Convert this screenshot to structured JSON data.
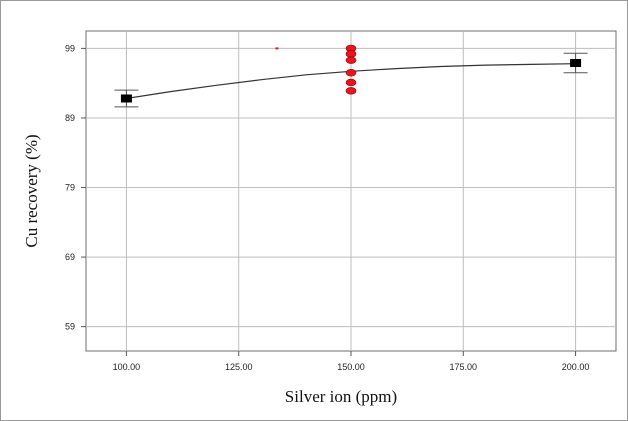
{
  "chart_data": {
    "type": "line",
    "title": "",
    "xlabel": "Silver ion (ppm)",
    "ylabel": "Cu recovery (%)",
    "xlim": [
      91,
      209
    ],
    "ylim": [
      55.5,
      101.5
    ],
    "x_ticks": [
      100,
      125,
      150,
      175,
      200
    ],
    "x_tick_labels": [
      "100.00",
      "125.00",
      "150.00",
      "175.00",
      "200.00"
    ],
    "y_ticks": [
      59,
      69,
      79,
      89,
      99
    ],
    "y_tick_labels": [
      "59",
      "69",
      "79",
      "89",
      "99"
    ],
    "grid": true,
    "legend": false,
    "series": [
      {
        "kind": "fitted-curve",
        "color": "#333333",
        "x": [
          100,
          110,
          120,
          130,
          140,
          150,
          160,
          170,
          180,
          190,
          200
        ],
        "y": [
          91.8,
          92.8,
          93.7,
          94.5,
          95.2,
          95.7,
          96.1,
          96.4,
          96.6,
          96.7,
          96.8
        ]
      },
      {
        "kind": "design-points",
        "color": "#000000",
        "x": [
          100,
          200
        ],
        "y": [
          91.8,
          96.9
        ],
        "error_low": [
          90.6,
          95.5
        ],
        "error_high": [
          93.0,
          98.3
        ]
      },
      {
        "kind": "center-points",
        "color": "#e8141e",
        "x": [
          150,
          150,
          150,
          150,
          150,
          150
        ],
        "y": [
          99.0,
          98.2,
          97.3,
          95.5,
          94.1,
          92.9
        ]
      }
    ],
    "annotations": [
      {
        "kind": "small-mark",
        "color": "#e8141e",
        "x": 133.5,
        "y": 99.0
      }
    ]
  }
}
